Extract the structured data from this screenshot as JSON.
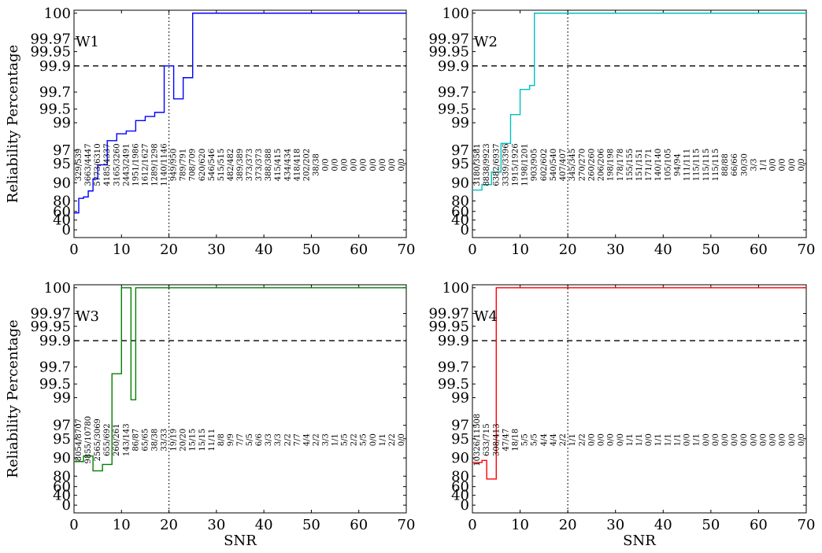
{
  "chart_data": [
    {
      "type": "line",
      "label": "W1",
      "color": "#0000ff",
      "xlabel": "",
      "ylabel": "Reliability Percentage",
      "xlim": [
        0,
        70
      ],
      "yticks": [
        "0",
        "40",
        "60",
        "80",
        "90",
        "95",
        "97",
        "99",
        "99.5",
        "99.7",
        "99.9",
        "99.95",
        "99.97",
        "100"
      ],
      "xticks": [
        "0",
        "10",
        "20",
        "30",
        "40",
        "50",
        "60",
        "70"
      ],
      "reference_vline": 20,
      "reference_hline": "99.9",
      "step_x": [
        0,
        1,
        2,
        3,
        4,
        5,
        6,
        7,
        8,
        9,
        10,
        11,
        12,
        13,
        14,
        15,
        16,
        17,
        18,
        19,
        20,
        21,
        22,
        23,
        24,
        25,
        26,
        70
      ],
      "step_y": [
        56.6,
        81.4,
        82.2,
        85.5,
        91.0,
        94.7,
        94.7,
        97.7,
        97.7,
        98.2,
        98.2,
        98.4,
        98.4,
        99.08,
        99.08,
        99.23,
        99.23,
        99.38,
        99.38,
        99.9,
        99.9,
        99.62,
        99.62,
        99.81,
        99.81,
        100,
        100,
        100
      ],
      "counts": [
        "329/539",
        "3663/4447",
        "5773/6310",
        "4185/4337",
        "3165/3260",
        "2443/2491",
        "1951/1986",
        "1612/1627",
        "1289/1298",
        "1140/1146",
        "949/950",
        "789/791",
        "708/709",
        "620/620",
        "546/546",
        "515/515",
        "482/482",
        "389/389",
        "373/373",
        "373/373",
        "388/388",
        "415/415",
        "434/434",
        "418/418",
        "202/202",
        "38/38",
        "0/0",
        "0/0",
        "0/0",
        "0/0",
        "0/0",
        "0/0",
        "0/0",
        "0/0",
        "0/0"
      ]
    },
    {
      "type": "line",
      "label": "W2",
      "color": "#00bfbf",
      "xlabel": "",
      "ylabel": "",
      "xlim": [
        0,
        70
      ],
      "yticks": [
        "0",
        "40",
        "60",
        "80",
        "90",
        "95",
        "97",
        "99",
        "99.5",
        "99.7",
        "99.9",
        "99.95",
        "99.97",
        "100"
      ],
      "xticks": [
        "0",
        "10",
        "20",
        "30",
        "40",
        "50",
        "60",
        "70"
      ],
      "reference_vline": 20,
      "reference_hline": "99.9",
      "step_x": [
        0,
        1,
        2,
        3,
        4,
        5,
        6,
        7,
        8,
        9,
        10,
        11,
        12,
        13,
        14,
        70
      ],
      "step_y": [
        86.0,
        86.0,
        89.0,
        89.0,
        92.8,
        92.8,
        97.5,
        97.5,
        99.3,
        99.3,
        99.72,
        99.72,
        99.75,
        100,
        100,
        100
      ],
      "counts": [
        "3180/3581",
        "8838/9923",
        "6382/6937",
        "3339/3396",
        "1915/1926",
        "1198/1201",
        "903/905",
        "602/602",
        "540/540",
        "407/407",
        "345/345",
        "270/270",
        "260/260",
        "206/206",
        "198/198",
        "178/178",
        "155/155",
        "151/151",
        "171/171",
        "140/140",
        "105/105",
        "94/94",
        "111/111",
        "115/115",
        "115/115",
        "115/115",
        "88/88",
        "66/66",
        "30/30",
        "3/3",
        "1/1",
        "0/0",
        "0/0",
        "0/0",
        "0/0"
      ]
    },
    {
      "type": "line",
      "label": "W3",
      "color": "#008000",
      "xlabel": "SNR",
      "ylabel": "Reliability Percentage",
      "xlim": [
        0,
        70
      ],
      "yticks": [
        "0",
        "40",
        "60",
        "80",
        "90",
        "95",
        "97",
        "99",
        "99.5",
        "99.7",
        "99.9",
        "99.95",
        "99.97",
        "100"
      ],
      "xticks": [
        "0",
        "10",
        "20",
        "30",
        "40",
        "50",
        "60",
        "70"
      ],
      "reference_vline": 20,
      "reference_hline": "99.9",
      "step_x": [
        0,
        1,
        2,
        3,
        4,
        5,
        6,
        7,
        8,
        9,
        10,
        11,
        12,
        13,
        14,
        70
      ],
      "step_y": [
        88.0,
        88.0,
        90.5,
        90.5,
        82.9,
        82.9,
        86.4,
        86.4,
        99.62,
        99.62,
        100,
        100,
        98.85,
        100,
        100,
        100
      ],
      "counts": [
        "8054/8707",
        "9855/10780",
        "2565/3069",
        "655/692",
        "260/261",
        "143/143",
        "86/87",
        "65/65",
        "38/38",
        "33/33",
        "19/19",
        "20/20",
        "15/15",
        "15/15",
        "11/11",
        "8/8",
        "9/9",
        "7/7",
        "5/5",
        "6/6",
        "3/3",
        "3/3",
        "2/2",
        "7/7",
        "4/4",
        "2/2",
        "3/3",
        "1/1",
        "5/5",
        "2/2",
        "5/5",
        "0/0",
        "1/1",
        "2/2",
        "0/0"
      ]
    },
    {
      "type": "line",
      "label": "W4",
      "color": "#ff0000",
      "xlabel": "SNR",
      "ylabel": "",
      "xlim": [
        0,
        70
      ],
      "yticks": [
        "0",
        "40",
        "60",
        "80",
        "90",
        "95",
        "97",
        "99",
        "99.5",
        "99.7",
        "99.9",
        "99.95",
        "99.97",
        "100"
      ],
      "xticks": [
        "0",
        "10",
        "20",
        "30",
        "40",
        "50",
        "60",
        "70"
      ],
      "reference_vline": 20,
      "reference_hline": "99.9",
      "step_x": [
        0,
        1,
        2,
        3,
        4,
        5,
        6,
        70
      ],
      "step_y": [
        87.5,
        87.5,
        88.6,
        74.6,
        74.6,
        100,
        100,
        100
      ],
      "counts": [
        "10326/11508",
        "633/715",
        "308/413",
        "47/47",
        "18/18",
        "5/5",
        "5/5",
        "4/4",
        "4/4",
        "2/2",
        "1/1",
        "2/2",
        "0/0",
        "0/0",
        "0/0",
        "0/0",
        "1/1",
        "1/1",
        "0/0",
        "1/1",
        "1/1",
        "1/1",
        "0/0",
        "1/1",
        "0/0",
        "0/0",
        "0/0",
        "0/0",
        "0/0",
        "0/0",
        "0/0",
        "0/0",
        "0/0",
        "0/0",
        "0/0"
      ]
    }
  ]
}
